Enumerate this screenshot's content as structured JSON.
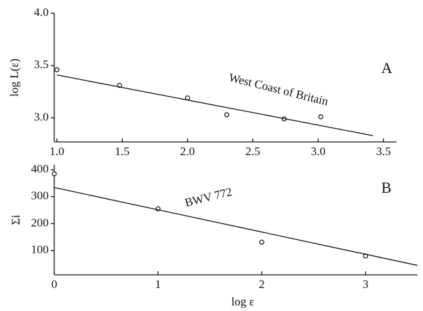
{
  "chart_data": [
    {
      "type": "scatter",
      "panel_label": "A",
      "ylabel": "log L(ε)",
      "annotation": "West Coast of Britain",
      "x": [
        1.0,
        1.48,
        2.0,
        2.3,
        2.74,
        3.02
      ],
      "values": [
        3.46,
        3.31,
        3.19,
        3.03,
        2.99,
        3.01
      ],
      "fit": {
        "x": [
          1.0,
          3.42
        ],
        "y": [
          3.41,
          2.83
        ]
      },
      "xlim": [
        0.98,
        3.6
      ],
      "ylim": [
        2.77,
        4.0
      ],
      "xticks": [
        {
          "value": 1.0,
          "label": "1.0"
        },
        1.5,
        {
          "value": 2.0,
          "label": "2.0"
        },
        2.5,
        {
          "value": 3.0,
          "label": "3.0"
        },
        3.5
      ],
      "yticks": [
        {
          "value": 3.0,
          "label": "3.0"
        },
        3.5,
        {
          "value": 4.0,
          "label": "4.0"
        }
      ]
    },
    {
      "type": "scatter",
      "panel_label": "B",
      "ylabel": "Σi",
      "xlabel": "log ε",
      "annotation": "BWV 772",
      "x": [
        0,
        1,
        2,
        3
      ],
      "values": [
        385,
        255,
        131,
        80
      ],
      "fit": {
        "x": [
          0,
          3.5
        ],
        "y": [
          334,
          45
        ]
      },
      "xlim": [
        0,
        3.5
      ],
      "ylim": [
        10,
        418
      ],
      "xticks": [
        0,
        1,
        2,
        3
      ],
      "yticks": [
        100,
        200,
        300,
        400
      ]
    }
  ]
}
